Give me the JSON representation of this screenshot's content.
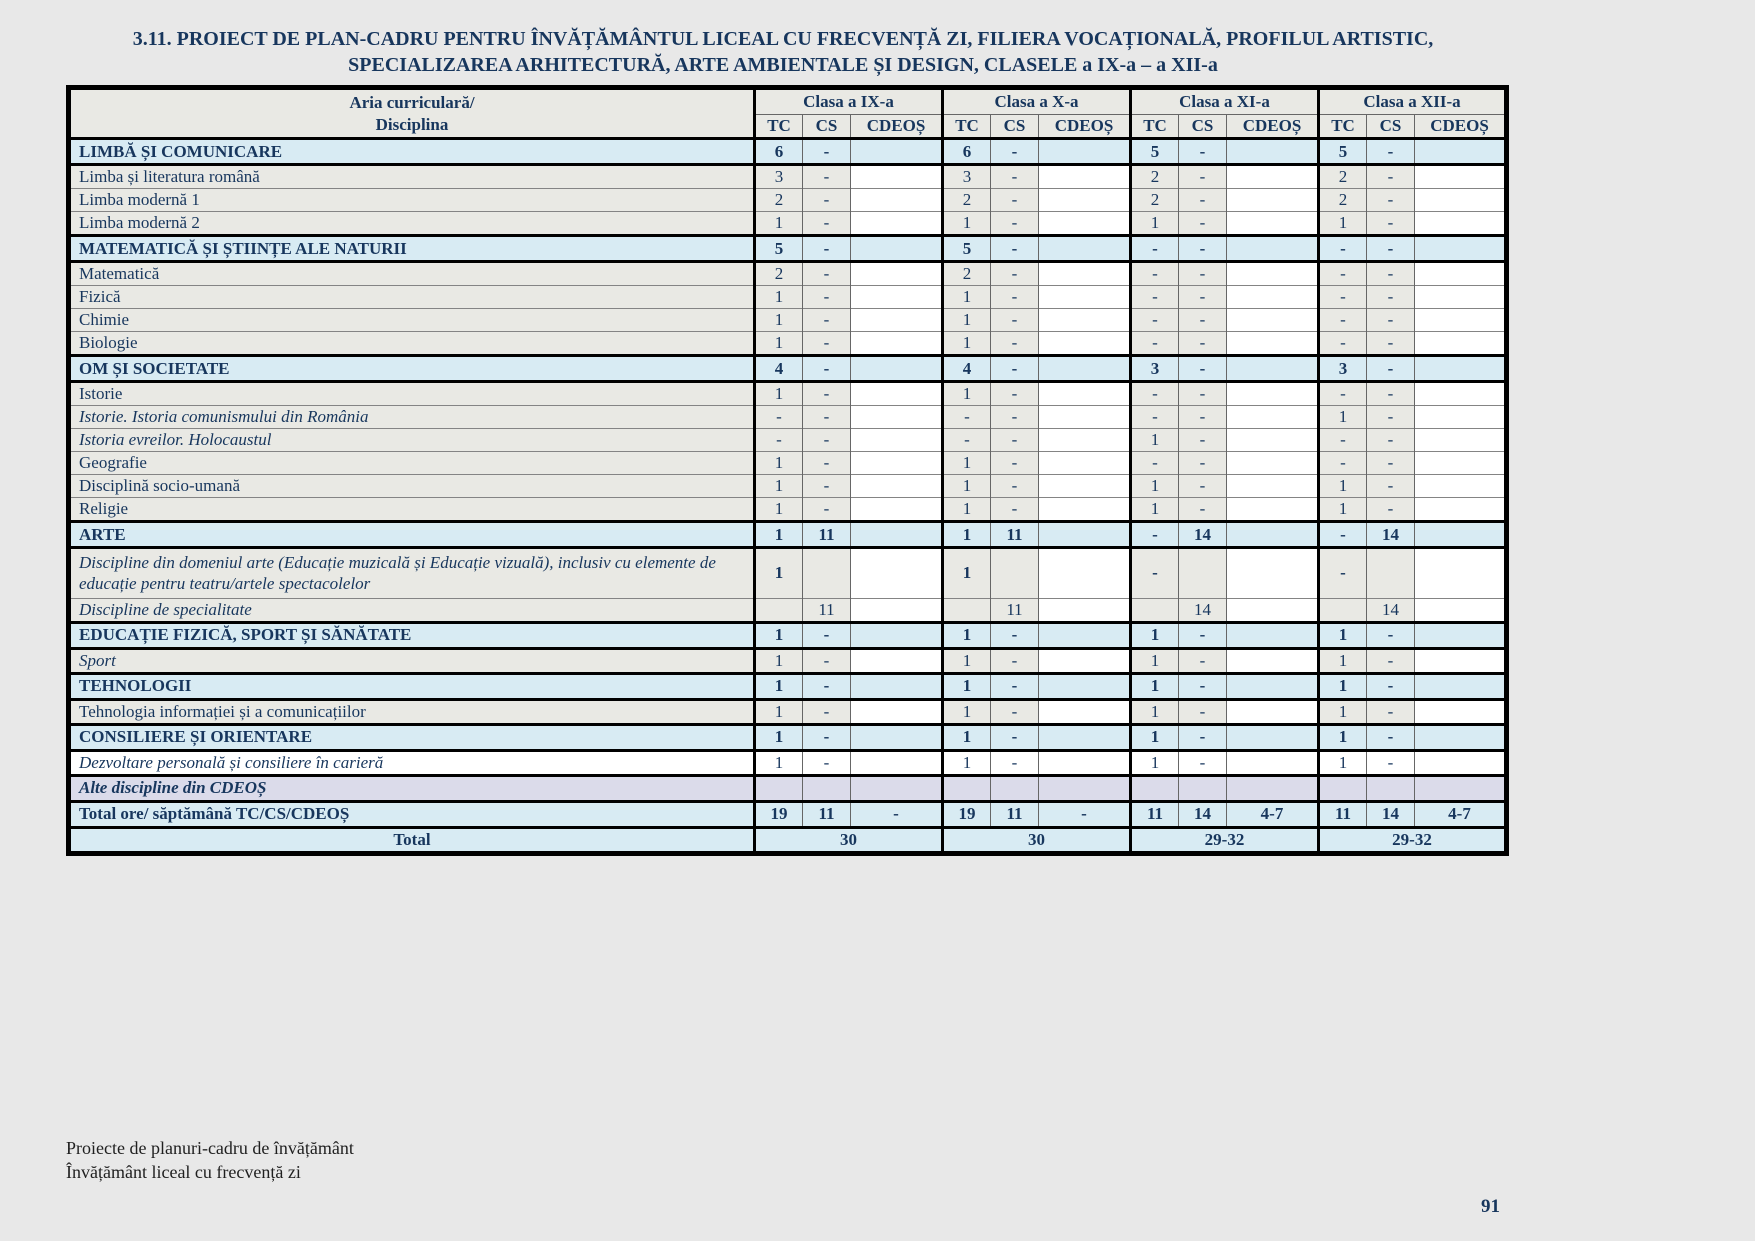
{
  "title": {
    "line1": "3.11. PROIECT DE PLAN-CADRU PENTRU ÎNVĂȚĂMÂNTUL LICEAL CU FRECVENȚĂ ZI, FILIERA VOCAȚIONALĂ, PROFILUL ARTISTIC,",
    "line2": "SPECIALIZAREA ARHITECTURĂ, ARTE AMBIENTALE ȘI DESIGN, CLASELE a IX-a – a XII-a"
  },
  "table": {
    "corner_header": {
      "line1": "Aria curriculară/",
      "line2": "Disciplina"
    },
    "class_headers": [
      "Clasa a IX-a",
      "Clasa a X-a",
      "Clasa a XI-a",
      "Clasa a XII-a"
    ],
    "sub_headers": [
      "TC",
      "CS",
      "CDEOȘ"
    ],
    "rows": [
      {
        "label": "LIMBĂ ȘI COMUNICARE",
        "style": "category",
        "sep": "thick",
        "cells": [
          "6",
          "-",
          "",
          "6",
          "-",
          "",
          "5",
          "-",
          "",
          "5",
          "-",
          ""
        ]
      },
      {
        "label": "Limba și literatura română",
        "style": "disc",
        "sep": "thick",
        "cells": [
          "3",
          "-",
          "",
          "3",
          "-",
          "",
          "2",
          "-",
          "",
          "2",
          "-",
          ""
        ]
      },
      {
        "label": "Limba modernă 1",
        "style": "disc",
        "sep": "thin",
        "cells": [
          "2",
          "-",
          "",
          "2",
          "-",
          "",
          "2",
          "-",
          "",
          "2",
          "-",
          ""
        ]
      },
      {
        "label": "Limba modernă 2",
        "style": "disc",
        "sep": "thin",
        "cells": [
          "1",
          "-",
          "",
          "1",
          "-",
          "",
          "1",
          "-",
          "",
          "1",
          "-",
          ""
        ]
      },
      {
        "label": "MATEMATICĂ ȘI ȘTIINȚE ALE NATURII",
        "style": "category",
        "sep": "thick",
        "cells": [
          "5",
          "-",
          "",
          "5",
          "-",
          "",
          "-",
          "-",
          "",
          "-",
          "-",
          ""
        ]
      },
      {
        "label": "Matematică",
        "style": "disc",
        "sep": "thick",
        "cells": [
          "2",
          "-",
          "",
          "2",
          "-",
          "",
          "-",
          "-",
          "",
          "-",
          "-",
          ""
        ]
      },
      {
        "label": "Fizică",
        "style": "disc",
        "sep": "thin",
        "cells": [
          "1",
          "-",
          "",
          "1",
          "-",
          "",
          "-",
          "-",
          "",
          "-",
          "-",
          ""
        ]
      },
      {
        "label": "Chimie",
        "style": "disc",
        "sep": "thin",
        "cells": [
          "1",
          "-",
          "",
          "1",
          "-",
          "",
          "-",
          "-",
          "",
          "-",
          "-",
          ""
        ]
      },
      {
        "label": "Biologie",
        "style": "disc",
        "sep": "thin",
        "cells": [
          "1",
          "-",
          "",
          "1",
          "-",
          "",
          "-",
          "-",
          "",
          "-",
          "-",
          ""
        ]
      },
      {
        "label": "OM ȘI SOCIETATE",
        "style": "category",
        "sep": "thick",
        "cells": [
          "4",
          "-",
          "",
          "4",
          "-",
          "",
          "3",
          "-",
          "",
          "3",
          "-",
          ""
        ]
      },
      {
        "label": "Istorie",
        "style": "disc",
        "sep": "thick",
        "cells": [
          "1",
          "-",
          "",
          "1",
          "-",
          "",
          "-",
          "-",
          "",
          "-",
          "-",
          ""
        ]
      },
      {
        "label": "Istorie. Istoria comunismului din România",
        "style": "disc-i",
        "sep": "thin",
        "cells": [
          "-",
          "-",
          "",
          "-",
          "-",
          "",
          "-",
          "-",
          "",
          "1",
          "-",
          ""
        ]
      },
      {
        "label": "Istoria evreilor. Holocaustul",
        "style": "disc-i",
        "sep": "thin",
        "cells": [
          "-",
          "-",
          "",
          "-",
          "-",
          "",
          "1",
          "-",
          "",
          "-",
          "-",
          ""
        ]
      },
      {
        "label": "Geografie",
        "style": "disc",
        "sep": "thin",
        "cells": [
          "1",
          "-",
          "",
          "1",
          "-",
          "",
          "-",
          "-",
          "",
          "-",
          "-",
          ""
        ]
      },
      {
        "label": "Disciplină socio-umană",
        "style": "disc",
        "sep": "thin",
        "cells": [
          "1",
          "-",
          "",
          "1",
          "-",
          "",
          "1",
          "-",
          "",
          "1",
          "-",
          ""
        ]
      },
      {
        "label": "Religie",
        "style": "disc",
        "sep": "thin",
        "cells": [
          "1",
          "-",
          "",
          "1",
          "-",
          "",
          "1",
          "-",
          "",
          "1",
          "-",
          ""
        ]
      },
      {
        "label": "ARTE",
        "style": "category",
        "sep": "thick",
        "cells": [
          "1",
          "11",
          "",
          "1",
          "11",
          "",
          "-",
          "14",
          "",
          "-",
          "14",
          ""
        ]
      },
      {
        "label": "Discipline din domeniul arte (Educație muzicală și Educație vizuală), inclusiv cu elemente de educație pentru teatru/artele spectacolelor",
        "style": "disc-i",
        "sep": "thick",
        "tall": true,
        "bold": true,
        "cells": [
          "1",
          "",
          "",
          "1",
          "",
          "",
          "-",
          "",
          "",
          "-",
          "",
          ""
        ]
      },
      {
        "label": "Discipline de specialitate",
        "style": "disc-i",
        "sep": "thin",
        "cells": [
          "",
          "11",
          "",
          "",
          "11",
          "",
          "",
          "14",
          "",
          "",
          "14",
          ""
        ]
      },
      {
        "label": "EDUCAȚIE FIZICĂ, SPORT ȘI SĂNĂTATE",
        "style": "category",
        "sep": "thick",
        "cells": [
          "1",
          "-",
          "",
          "1",
          "-",
          "",
          "1",
          "-",
          "",
          "1",
          "-",
          ""
        ]
      },
      {
        "label": "Sport",
        "style": "disc-i",
        "sep": "thick",
        "cells": [
          "1",
          "-",
          "",
          "1",
          "-",
          "",
          "1",
          "-",
          "",
          "1",
          "-",
          ""
        ]
      },
      {
        "label": "TEHNOLOGII",
        "style": "category",
        "sep": "thick",
        "cells": [
          "1",
          "-",
          "",
          "1",
          "-",
          "",
          "1",
          "-",
          "",
          "1",
          "-",
          ""
        ]
      },
      {
        "label": "Tehnologia informației și a comunicațiilor",
        "style": "disc",
        "sep": "thick",
        "cells": [
          "1",
          "-",
          "",
          "1",
          "-",
          "",
          "1",
          "-",
          "",
          "1",
          "-",
          ""
        ]
      },
      {
        "label": "CONSILIERE ȘI ORIENTARE",
        "style": "category",
        "sep": "thick",
        "cells": [
          "1",
          "-",
          "",
          "1",
          "-",
          "",
          "1",
          "-",
          "",
          "1",
          "-",
          ""
        ]
      },
      {
        "label": "Dezvoltare personală și consiliere în carieră",
        "style": "white-i",
        "sep": "thick",
        "cells": [
          "1",
          "-",
          "",
          "1",
          "-",
          "",
          "1",
          "-",
          "",
          "1",
          "-",
          ""
        ]
      },
      {
        "label": "Alte discipline din CDEOȘ",
        "style": "alte",
        "sep": "thick",
        "cells": [
          "",
          "",
          "",
          "",
          "",
          "",
          "",
          "",
          "",
          "",
          "",
          ""
        ]
      },
      {
        "label": "Total ore/ săptămână TC/CS/CDEOȘ",
        "style": "total",
        "sep": "thick",
        "cells": [
          "19",
          "11",
          "-",
          "19",
          "11",
          "-",
          "11",
          "14",
          "4-7",
          "11",
          "14",
          "4-7"
        ]
      }
    ],
    "grand_total": {
      "label": "Total",
      "values": [
        "30",
        "30",
        "29-32",
        "29-32"
      ]
    }
  },
  "footer": {
    "line1": "Proiecte de planuri-cadru de învățământ",
    "line2": "Învățământ liceal cu frecvență zi",
    "page_number": "91"
  },
  "colors": {
    "page_background": "#e8e8e8",
    "text": "#17365d",
    "category_row": "#d8ebf3",
    "discipline_cell": "#e9e9e4",
    "cdeos_column": "#ffffff",
    "alte_row": "#dbdbea",
    "total_row": "#d8ebf3"
  }
}
